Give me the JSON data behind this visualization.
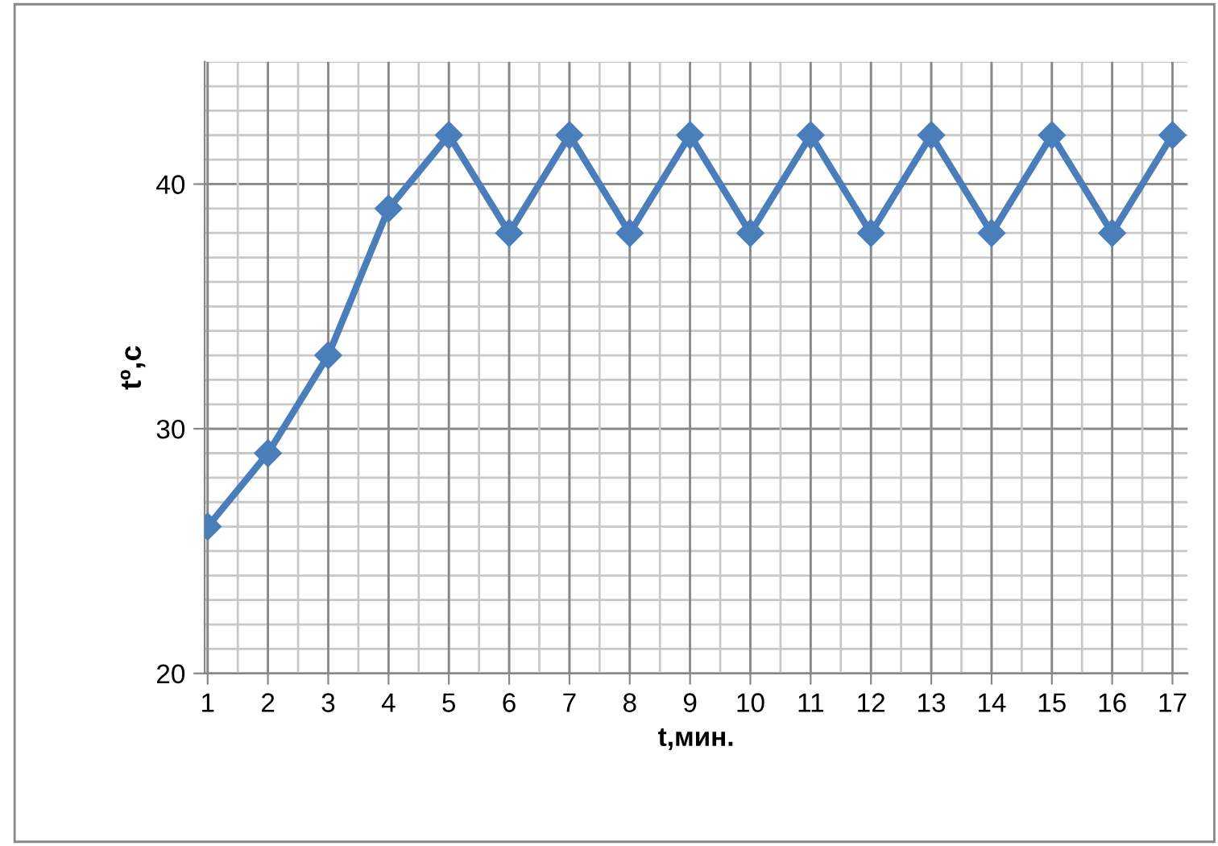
{
  "chart_data": {
    "type": "line",
    "xlabel": "t,мин.",
    "ylabel": "tº,c",
    "categories": [
      "1",
      "2",
      "3",
      "4",
      "5",
      "6",
      "7",
      "8",
      "9",
      "10",
      "11",
      "12",
      "13",
      "14",
      "15",
      "16",
      "17"
    ],
    "series": [
      {
        "color": "#4a7ebb",
        "values": [
          26,
          29,
          33,
          39,
          42,
          38,
          42,
          38,
          42,
          38,
          42,
          38,
          42,
          38,
          42,
          38,
          42
        ]
      }
    ],
    "ylim": [
      20,
      45
    ],
    "yticks": [
      20,
      30,
      40
    ],
    "grid": true,
    "marker": "diamond",
    "line_style": "solid"
  }
}
